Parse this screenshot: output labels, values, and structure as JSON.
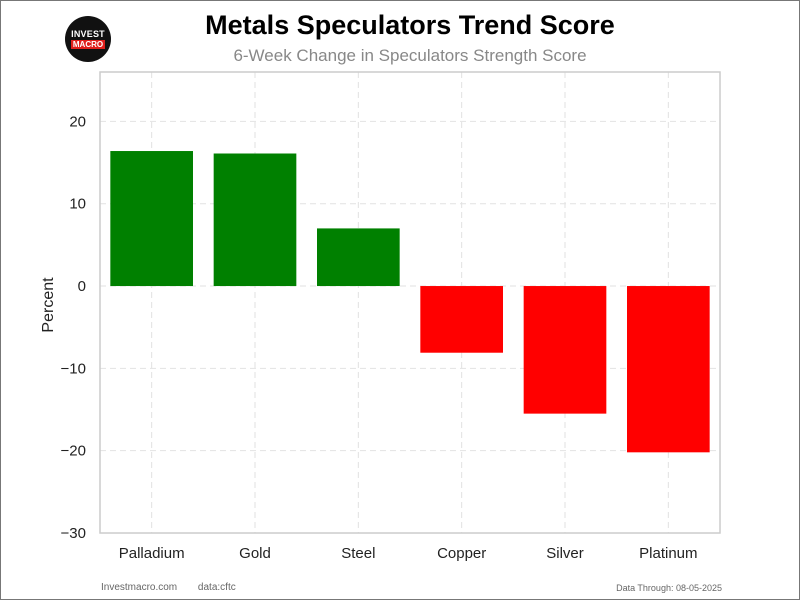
{
  "logo": {
    "line1": "INVEST",
    "line2": "MACRO"
  },
  "chart_data": {
    "type": "bar",
    "title": "Metals Speculators Trend Score",
    "subtitle": "6-Week Change in Speculators Strength Score",
    "ylabel": "Percent",
    "xlabel": "",
    "categories": [
      "Palladium",
      "Gold",
      "Steel",
      "Copper",
      "Silver",
      "Platinum"
    ],
    "values": [
      16.4,
      16.1,
      7.0,
      -8.1,
      -15.5,
      -20.2
    ],
    "colors": [
      "#008000",
      "#008000",
      "#008000",
      "#ff0000",
      "#ff0000",
      "#ff0000"
    ],
    "ylim": [
      -30,
      26
    ],
    "yticks": [
      -30,
      -20,
      -10,
      0,
      10,
      20
    ],
    "ytick_labels": [
      "−30",
      "−20",
      "−10",
      "0",
      "10",
      "20"
    ],
    "grid": true
  },
  "footer": {
    "source_site": "Investmacro.com",
    "data_source": "data:cftc",
    "data_through": "Data Through: 08-05-2025"
  }
}
